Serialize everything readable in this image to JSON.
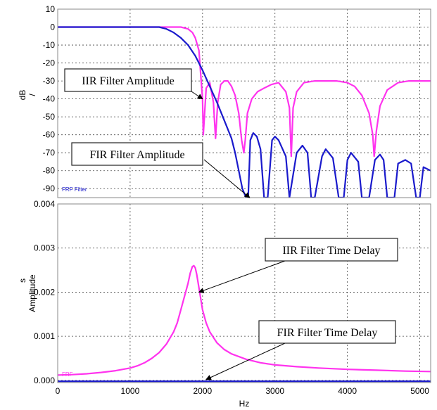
{
  "chart_data": [
    {
      "type": "line",
      "title": "",
      "xlabel": "",
      "ylabel": "/",
      "ylabel_unit": "dB",
      "xlim": [
        0,
        5150
      ],
      "ylim": [
        -95,
        10
      ],
      "x_ticks": [
        0,
        1000,
        2000,
        3000,
        4000,
        5000
      ],
      "y_ticks": [
        10,
        0,
        -10,
        -20,
        -30,
        -40,
        -50,
        -60,
        -70,
        -80,
        -90
      ],
      "grid": true,
      "legend_text": "FRF Filter",
      "legend_placement": "bottom-left",
      "series": [
        {
          "name": "IIR Filter Amplitude",
          "color": "#ff33ee",
          "x": [
            0,
            1500,
            1700,
            1800,
            1860,
            1900,
            1950,
            2000,
            2010,
            2050,
            2100,
            2150,
            2180,
            2210,
            2250,
            2300,
            2350,
            2400,
            2450,
            2500,
            2540,
            2570,
            2590,
            2620,
            2680,
            2760,
            2850,
            2950,
            3050,
            3150,
            3200,
            3225,
            3250,
            3300,
            3400,
            3550,
            3700,
            3850,
            4000,
            4100,
            4200,
            4300,
            4350,
            4370,
            4400,
            4450,
            4550,
            4700,
            4850,
            5000,
            5150
          ],
          "y": [
            0,
            0,
            0,
            -1,
            -3,
            -6,
            -13,
            -40,
            -60,
            -34,
            -31,
            -42,
            -62,
            -42,
            -32,
            -30,
            -30,
            -33,
            -38,
            -48,
            -63,
            -70,
            -63,
            -48,
            -40,
            -36,
            -34,
            -32,
            -31,
            -36,
            -45,
            -72,
            -45,
            -36,
            -31,
            -30,
            -30,
            -30,
            -31,
            -33,
            -38,
            -48,
            -60,
            -72,
            -58,
            -44,
            -35,
            -31,
            -30,
            -30,
            -30
          ]
        },
        {
          "name": "FIR Filter Amplitude",
          "color": "#1a1acc",
          "x": [
            0,
            1400,
            1500,
            1600,
            1700,
            1800,
            1900,
            2000,
            2100,
            2200,
            2300,
            2400,
            2450,
            2500,
            2550,
            2600,
            2630,
            2660,
            2700,
            2750,
            2800,
            2850,
            2900,
            2960,
            3000,
            3050,
            3150,
            3200,
            3300,
            3380,
            3450,
            3500,
            3550,
            3650,
            3700,
            3800,
            3880,
            3950,
            4000,
            4050,
            4150,
            4200,
            4300,
            4380,
            4450,
            4500,
            4550,
            4650,
            4700,
            4800,
            4880,
            4950,
            5000,
            5050,
            5150
          ],
          "y": [
            0,
            0,
            -1,
            -3,
            -6,
            -10,
            -16,
            -24,
            -33,
            -42,
            -52,
            -62,
            -70,
            -80,
            -90,
            -95,
            -95,
            -63,
            -59,
            -61,
            -68,
            -95,
            -95,
            -63,
            -61,
            -63,
            -72,
            -95,
            -70,
            -66,
            -70,
            -95,
            -95,
            -72,
            -68,
            -73,
            -95,
            -95,
            -74,
            -70,
            -75,
            -95,
            -95,
            -74,
            -71,
            -74,
            -95,
            -95,
            -76,
            -74,
            -76,
            -95,
            -95,
            -78,
            -80
          ]
        }
      ],
      "annotations": [
        {
          "text": "IIR Filter Amplitude",
          "x": 2000,
          "y": -40
        },
        {
          "text": "FIR Filter Amplitude",
          "x": 2650,
          "y": -95
        }
      ]
    },
    {
      "type": "line",
      "title": "",
      "xlabel": "Hz",
      "ylabel": "Amplitude",
      "ylabel_unit": "s",
      "xlim": [
        0,
        5150
      ],
      "ylim": [
        -5e-05,
        0.004
      ],
      "x_ticks": [
        0,
        1000,
        2000,
        3000,
        4000,
        5000
      ],
      "x_tick_labels": [
        "0",
        "1000",
        "2000",
        "3000",
        "4000",
        "5000"
      ],
      "y_ticks": [
        0.0,
        0.001,
        0.002,
        0.003,
        0.004
      ],
      "y_tick_labels": [
        "0.000",
        "0.001",
        "0.002",
        "0.003",
        "0.004"
      ],
      "grid": true,
      "legend_text": "FRF",
      "legend_placement": "bottom-left",
      "series": [
        {
          "name": "IIR Filter Time Delay",
          "color": "#ff33ee",
          "x": [
            0,
            200,
            400,
            600,
            800,
            1000,
            1100,
            1200,
            1300,
            1400,
            1500,
            1600,
            1650,
            1700,
            1750,
            1800,
            1830,
            1860,
            1880,
            1900,
            1920,
            1950,
            1980,
            2000,
            2050,
            2100,
            2200,
            2300,
            2400,
            2600,
            2800,
            3000,
            3300,
            3600,
            4000,
            4400,
            4800,
            5150
          ],
          "y": [
            0.00012,
            0.00013,
            0.00015,
            0.00018,
            0.00022,
            0.00028,
            0.00033,
            0.0004,
            0.0005,
            0.00063,
            0.00082,
            0.0011,
            0.0013,
            0.0016,
            0.0019,
            0.0022,
            0.00243,
            0.00258,
            0.0026,
            0.00255,
            0.0024,
            0.0021,
            0.0018,
            0.0016,
            0.0013,
            0.0011,
            0.00085,
            0.0007,
            0.0006,
            0.00048,
            0.0004,
            0.00035,
            0.00031,
            0.00028,
            0.00025,
            0.00023,
            0.00021,
            0.0002
          ]
        },
        {
          "name": "FIR Filter Time Delay",
          "color": "#1a1acc",
          "x": [
            0,
            5150
          ],
          "y": [
            -2e-05,
            -2e-05
          ]
        }
      ],
      "annotations": [
        {
          "text": "IIR Filter Time Delay",
          "x": 1950,
          "y": 0.002
        },
        {
          "text": "FIR Filter Time Delay",
          "x": 2050,
          "y": 2e-05
        }
      ]
    }
  ]
}
